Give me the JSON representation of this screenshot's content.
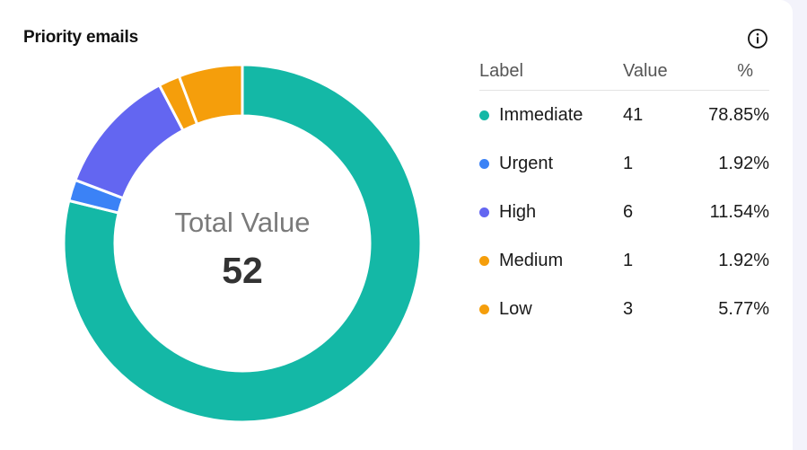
{
  "widget": {
    "title": "Priority emails",
    "info_icon": "info-circle-icon"
  },
  "table": {
    "headers": {
      "label": "Label",
      "value": "Value",
      "pct": "%"
    },
    "rows": [
      {
        "label": "Immediate",
        "value": "41",
        "pct": "78.85%",
        "color": "#14b8a6"
      },
      {
        "label": "Urgent",
        "value": "1",
        "pct": "1.92%",
        "color": "#3b82f6"
      },
      {
        "label": "High",
        "value": "6",
        "pct": "11.54%",
        "color": "#6366f1"
      },
      {
        "label": "Medium",
        "value": "1",
        "pct": "1.92%",
        "color": "#f59e0b"
      },
      {
        "label": "Low",
        "value": "3",
        "pct": "5.77%",
        "color": "#f59e0b"
      }
    ]
  },
  "chart_data": {
    "type": "pie",
    "variant": "donut",
    "categories": [
      "Immediate",
      "Urgent",
      "High",
      "Medium",
      "Low"
    ],
    "values": [
      41,
      1,
      6,
      1,
      3
    ],
    "percentages": [
      78.85,
      1.92,
      11.54,
      1.92,
      5.77
    ],
    "colors": [
      "#14b8a6",
      "#3b82f6",
      "#6366f1",
      "#f59e0b",
      "#f59e0b"
    ],
    "center_label": "Total Value",
    "center_value": "52",
    "legend_placement": "right"
  }
}
